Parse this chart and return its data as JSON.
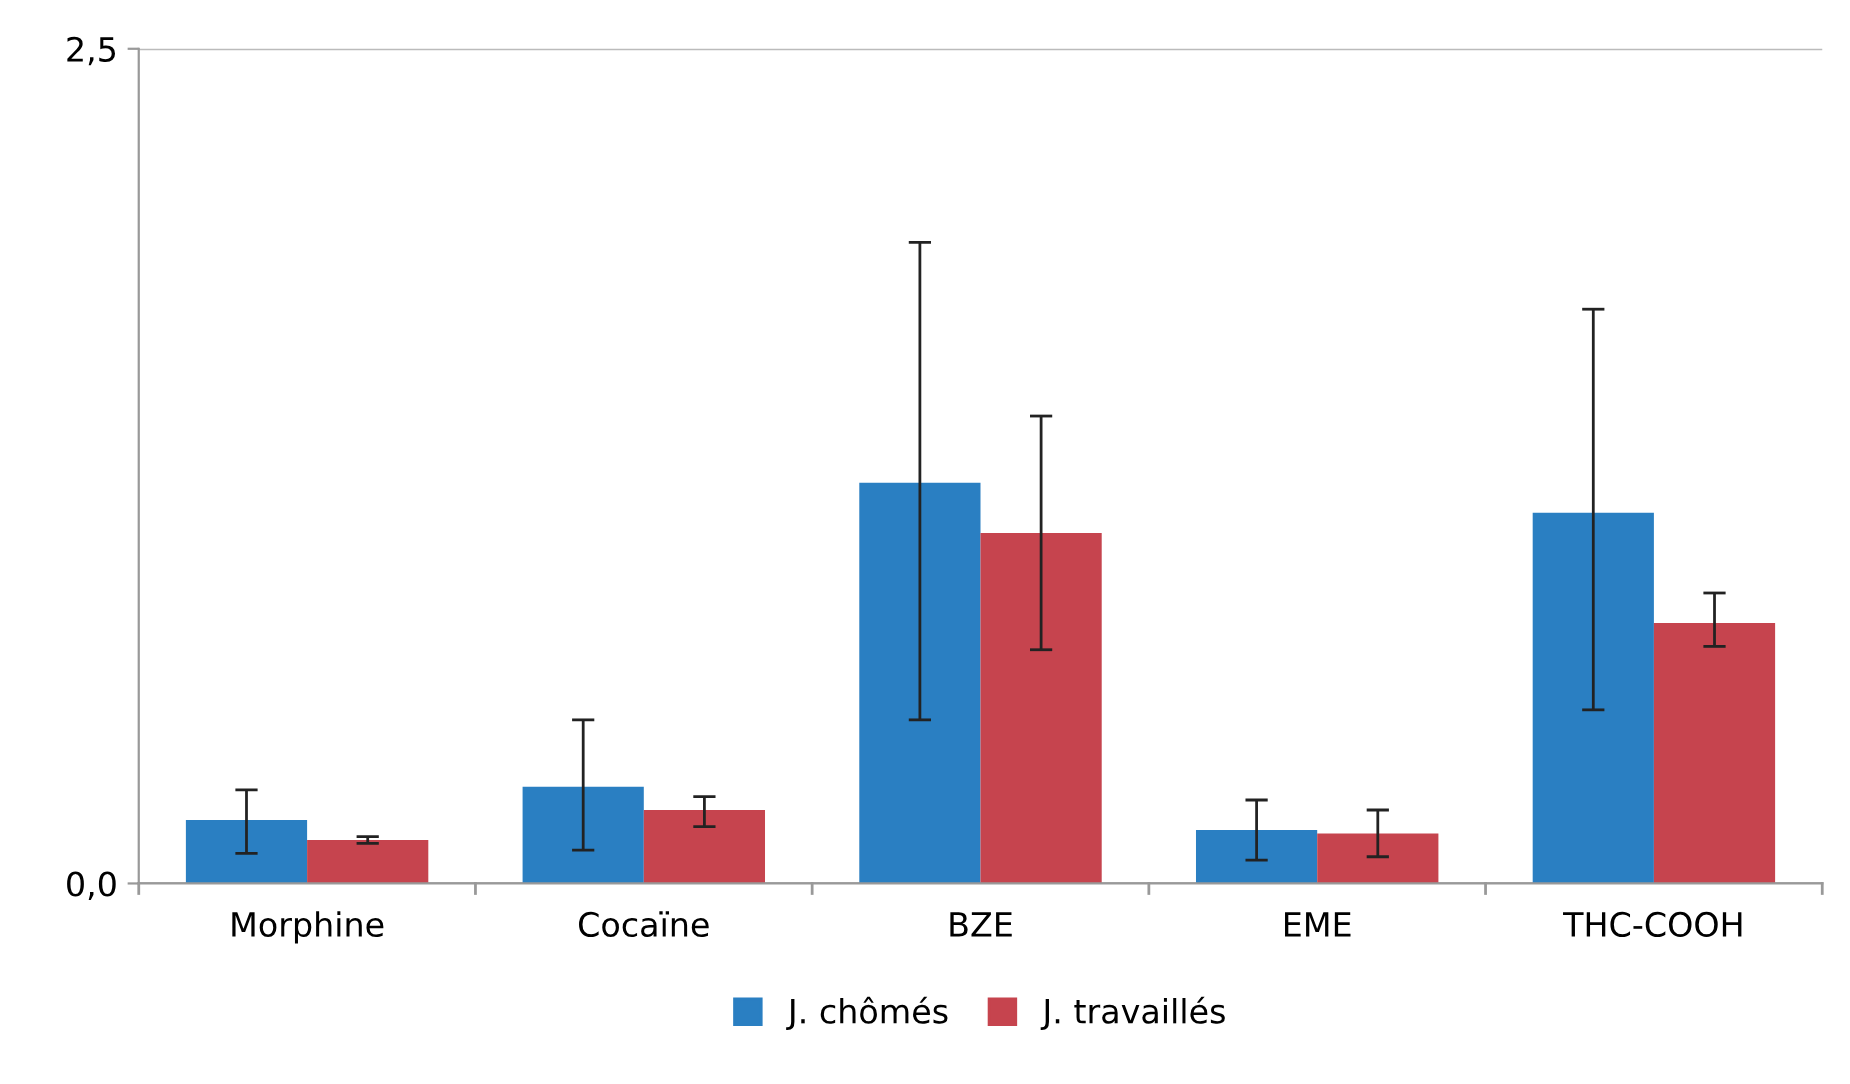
{
  "chart_data": {
    "type": "bar",
    "categories": [
      "Morphine",
      "Cocaïne",
      "BZE",
      "EME",
      "THC-COOH"
    ],
    "series": [
      {
        "name": "J. chômés",
        "color": "#2a7fc2",
        "values": [
          0.19,
          0.29,
          1.2,
          0.16,
          1.11
        ],
        "errors": [
          [
            0.09,
            0.28
          ],
          [
            0.1,
            0.49
          ],
          [
            0.49,
            1.92
          ],
          [
            0.07,
            0.25
          ],
          [
            0.52,
            1.72
          ]
        ]
      },
      {
        "name": "J. travaillés",
        "color": "#c6444e",
        "values": [
          0.13,
          0.22,
          1.05,
          0.15,
          0.78
        ],
        "errors": [
          [
            0.12,
            0.14
          ],
          [
            0.17,
            0.26
          ],
          [
            0.7,
            1.4
          ],
          [
            0.08,
            0.22
          ],
          [
            0.71,
            0.87
          ]
        ]
      }
    ],
    "ylim": [
      0,
      2.5
    ],
    "yticks": [
      {
        "value": 0,
        "label": "0,0"
      },
      {
        "value": 2.5,
        "label": "2,5"
      }
    ],
    "grid": "y",
    "legend": "bottom"
  }
}
